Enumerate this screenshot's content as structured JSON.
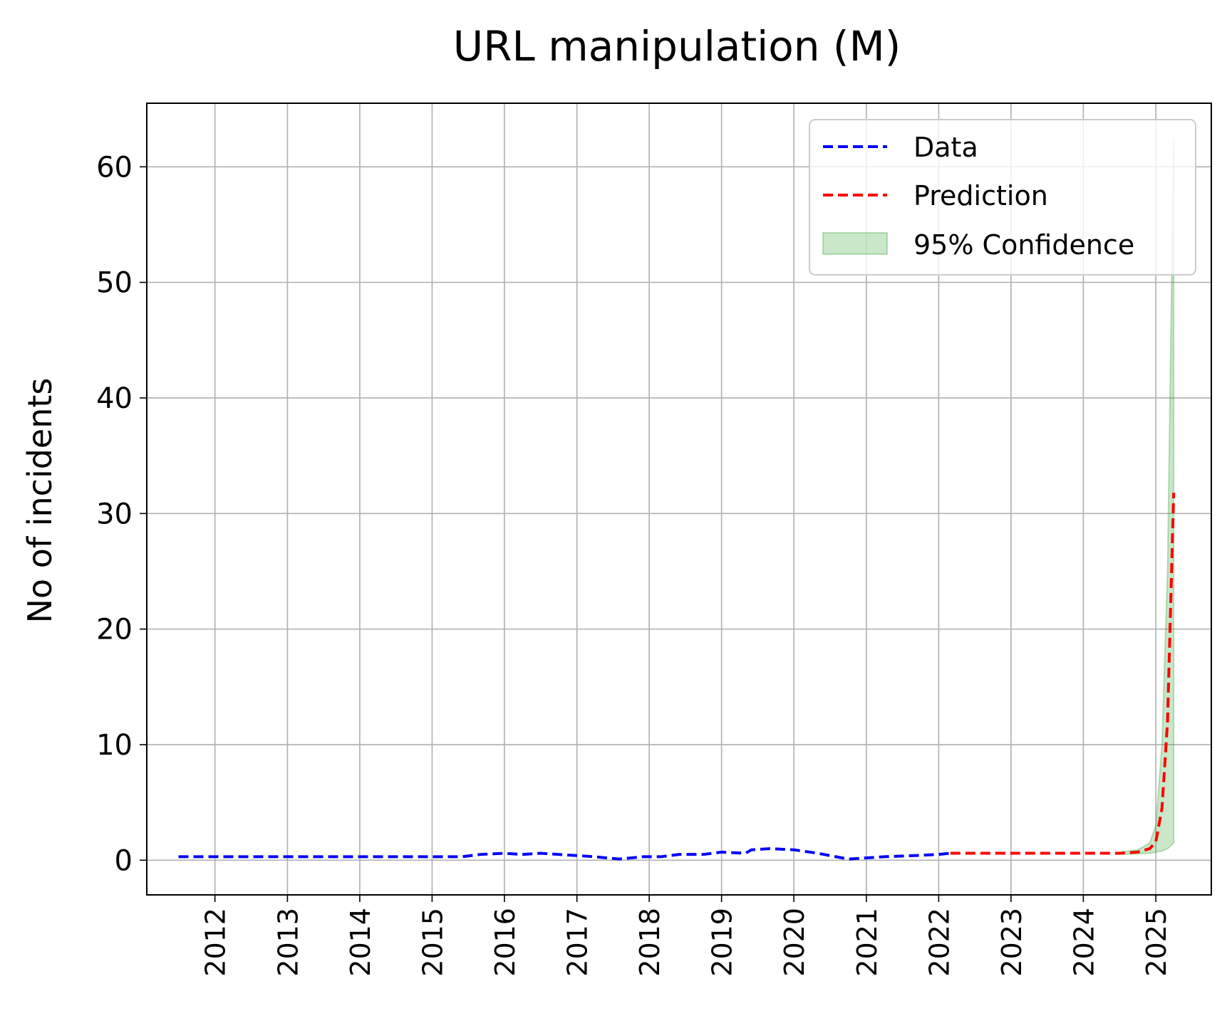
{
  "chart_data": {
    "type": "line",
    "title": "URL manipulation (M)",
    "xlabel": "",
    "ylabel": "No of incidents",
    "x_ticks": [
      "2012",
      "2013",
      "2014",
      "2015",
      "2016",
      "2017",
      "2018",
      "2019",
      "2020",
      "2021",
      "2022",
      "2023",
      "2024",
      "2025"
    ],
    "y_ticks": [
      "0",
      "10",
      "20",
      "30",
      "40",
      "50",
      "60"
    ],
    "xlim": [
      "2011-01-22",
      "2025-10-08"
    ],
    "ylim": [
      -3,
      65.5
    ],
    "grid": true,
    "legend_position": "top-right",
    "legend": {
      "data": "Data",
      "prediction": "Prediction",
      "confidence": "95% Confidence"
    },
    "colors": {
      "data": "#0000ff",
      "prediction": "#ff0000",
      "confidence": "#2ca02c"
    },
    "series": [
      {
        "name": "Data",
        "style": "dashed",
        "points": [
          [
            "2011-07-01",
            0.3
          ],
          [
            "2012-01-01",
            0.3
          ],
          [
            "2012-07-01",
            0.3
          ],
          [
            "2013-01-01",
            0.3
          ],
          [
            "2013-07-01",
            0.3
          ],
          [
            "2014-01-01",
            0.3
          ],
          [
            "2014-07-01",
            0.3
          ],
          [
            "2015-01-01",
            0.3
          ],
          [
            "2015-06-01",
            0.3
          ],
          [
            "2015-09-01",
            0.5
          ],
          [
            "2016-01-01",
            0.6
          ],
          [
            "2016-04-01",
            0.5
          ],
          [
            "2016-07-01",
            0.6
          ],
          [
            "2016-10-01",
            0.5
          ],
          [
            "2017-01-01",
            0.4
          ],
          [
            "2017-04-01",
            0.3
          ],
          [
            "2017-08-01",
            0.1
          ],
          [
            "2017-12-01",
            0.3
          ],
          [
            "2018-03-01",
            0.3
          ],
          [
            "2018-06-01",
            0.5
          ],
          [
            "2018-10-01",
            0.5
          ],
          [
            "2019-01-01",
            0.7
          ],
          [
            "2019-05-01",
            0.6
          ],
          [
            "2019-06-01",
            0.9
          ],
          [
            "2019-09-01",
            1.0
          ],
          [
            "2020-01-01",
            0.9
          ],
          [
            "2020-05-01",
            0.6
          ],
          [
            "2020-10-01",
            0.1
          ],
          [
            "2021-04-01",
            0.3
          ],
          [
            "2021-09-01",
            0.4
          ],
          [
            "2022-01-01",
            0.5
          ],
          [
            "2022-03-01",
            0.6
          ]
        ]
      },
      {
        "name": "Prediction",
        "style": "dashed",
        "points": [
          [
            "2022-03-01",
            0.6
          ],
          [
            "2022-09-01",
            0.6
          ],
          [
            "2023-03-01",
            0.6
          ],
          [
            "2023-09-01",
            0.6
          ],
          [
            "2024-03-01",
            0.6
          ],
          [
            "2024-07-01",
            0.6
          ],
          [
            "2024-10-01",
            0.7
          ],
          [
            "2024-12-01",
            1.0
          ],
          [
            "2025-01-01",
            1.6
          ],
          [
            "2025-02-01",
            4.5
          ],
          [
            "2025-03-01",
            12.0
          ],
          [
            "2025-04-01",
            31.8
          ]
        ]
      },
      {
        "name": "95% Confidence",
        "type": "area",
        "points": [
          [
            "2024-07-01",
            0.5,
            0.7
          ],
          [
            "2024-10-01",
            0.55,
            0.9
          ],
          [
            "2024-12-01",
            0.6,
            1.5
          ],
          [
            "2025-01-01",
            0.7,
            3.0
          ],
          [
            "2025-02-01",
            0.8,
            10.0
          ],
          [
            "2025-03-01",
            1.0,
            25.0
          ],
          [
            "2025-04-01",
            1.5,
            62.5
          ]
        ]
      }
    ]
  }
}
